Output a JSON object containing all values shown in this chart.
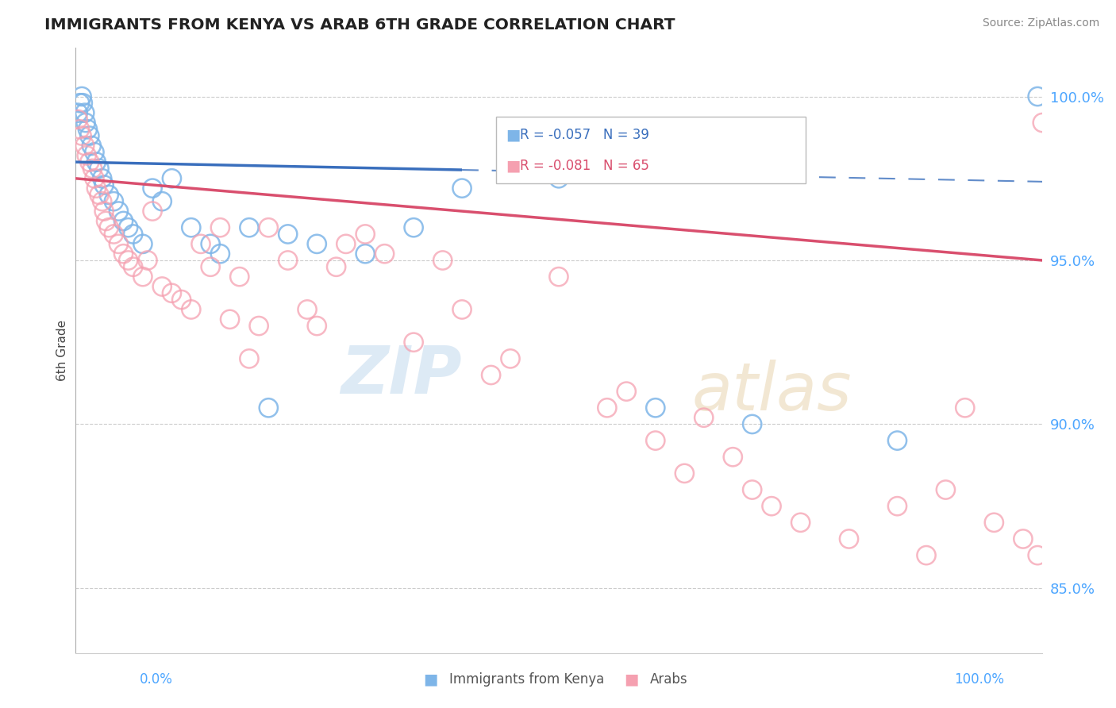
{
  "title": "IMMIGRANTS FROM KENYA VS ARAB 6TH GRADE CORRELATION CHART",
  "source_text": "Source: ZipAtlas.com",
  "ylabel": "6th Grade",
  "legend_kenya": "R = -0.057   N = 39",
  "legend_arab": "R = -0.081   N = 65",
  "legend_label_kenya": "Immigrants from Kenya",
  "legend_label_arab": "Arabs",
  "watermark_zip": "ZIP",
  "watermark_atlas": "atlas",
  "xlim": [
    0.0,
    100.0
  ],
  "ylim": [
    83.0,
    101.5
  ],
  "yticks": [
    85.0,
    90.0,
    95.0,
    100.0
  ],
  "ytick_labels": [
    "85.0%",
    "90.0%",
    "95.0%",
    "100.0%"
  ],
  "color_kenya": "#7eb5e8",
  "color_arab": "#f5a0b0",
  "color_trend_kenya": "#3a6fbd",
  "color_trend_arab": "#d94f6e",
  "kenya_trend_x0": 0.0,
  "kenya_trend_y0": 98.0,
  "kenya_trend_x1": 100.0,
  "kenya_trend_y1": 97.4,
  "kenya_solid_end": 40.0,
  "arab_trend_x0": 0.0,
  "arab_trend_y0": 97.5,
  "arab_trend_x1": 100.0,
  "arab_trend_y1": 95.0,
  "kenya_x": [
    0.3,
    0.5,
    0.7,
    0.8,
    1.0,
    1.1,
    1.3,
    1.5,
    1.7,
    2.0,
    2.2,
    2.5,
    2.8,
    3.0,
    3.5,
    4.0,
    4.5,
    5.0,
    5.5,
    6.0,
    7.0,
    8.0,
    9.0,
    10.0,
    12.0,
    14.0,
    15.0,
    18.0,
    20.0,
    22.0,
    25.0,
    30.0,
    35.0,
    40.0,
    50.0,
    60.0,
    70.0,
    85.0,
    99.5
  ],
  "kenya_y": [
    99.5,
    99.8,
    100.0,
    99.8,
    99.5,
    99.2,
    99.0,
    98.8,
    98.5,
    98.3,
    98.0,
    97.8,
    97.5,
    97.3,
    97.0,
    96.8,
    96.5,
    96.2,
    96.0,
    95.8,
    95.5,
    97.2,
    96.8,
    97.5,
    96.0,
    95.5,
    95.2,
    96.0,
    90.5,
    95.8,
    95.5,
    95.2,
    96.0,
    97.2,
    97.5,
    90.5,
    90.0,
    89.5,
    100.0
  ],
  "arab_x": [
    0.3,
    0.5,
    0.7,
    1.0,
    1.2,
    1.5,
    1.8,
    2.0,
    2.2,
    2.5,
    2.8,
    3.0,
    3.2,
    3.5,
    4.0,
    4.5,
    5.0,
    5.5,
    6.0,
    7.0,
    7.5,
    8.0,
    9.0,
    10.0,
    11.0,
    12.0,
    13.0,
    14.0,
    15.0,
    16.0,
    17.0,
    18.0,
    19.0,
    20.0,
    22.0,
    24.0,
    25.0,
    27.0,
    28.0,
    30.0,
    32.0,
    35.0,
    38.0,
    40.0,
    43.0,
    45.0,
    50.0,
    55.0,
    57.0,
    60.0,
    63.0,
    65.0,
    68.0,
    70.0,
    72.0,
    75.0,
    80.0,
    85.0,
    88.0,
    90.0,
    92.0,
    95.0,
    98.0,
    99.5,
    100.0
  ],
  "arab_y": [
    99.3,
    99.0,
    98.8,
    98.5,
    98.2,
    98.0,
    97.8,
    97.5,
    97.2,
    97.0,
    96.8,
    96.5,
    96.2,
    96.0,
    95.8,
    95.5,
    95.2,
    95.0,
    94.8,
    94.5,
    95.0,
    96.5,
    94.2,
    94.0,
    93.8,
    93.5,
    95.5,
    94.8,
    96.0,
    93.2,
    94.5,
    92.0,
    93.0,
    96.0,
    95.0,
    93.5,
    93.0,
    94.8,
    95.5,
    95.8,
    95.2,
    92.5,
    95.0,
    93.5,
    91.5,
    92.0,
    94.5,
    90.5,
    91.0,
    89.5,
    88.5,
    90.2,
    89.0,
    88.0,
    87.5,
    87.0,
    86.5,
    87.5,
    86.0,
    88.0,
    90.5,
    87.0,
    86.5,
    86.0,
    99.2
  ]
}
